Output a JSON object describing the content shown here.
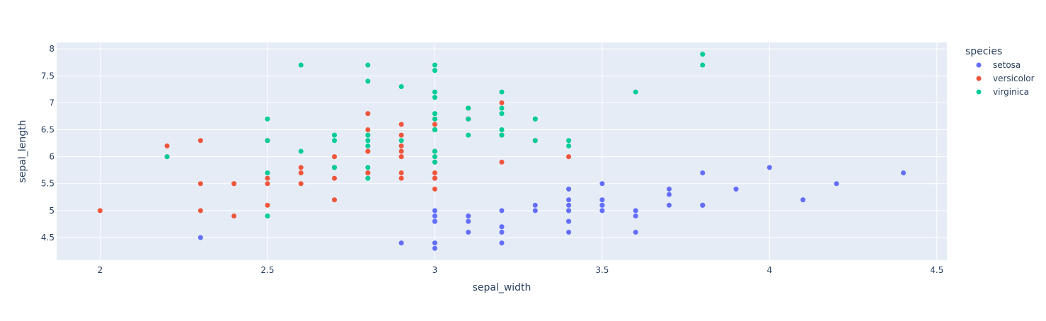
{
  "chart_data": {
    "type": "scatter",
    "title": "",
    "xlabel": "sepal_width",
    "ylabel": "sepal_length",
    "xlim": [
      1.87,
      4.53
    ],
    "ylim": [
      4.08,
      8.12
    ],
    "xticks": [
      2,
      2.5,
      3,
      3.5,
      4,
      4.5
    ],
    "xtick_labels": [
      "2",
      "2.5",
      "3",
      "3.5",
      "4",
      "4.5"
    ],
    "yticks": [
      4.5,
      5,
      5.5,
      6,
      6.5,
      7,
      7.5,
      8
    ],
    "ytick_labels": [
      "4.5",
      "5",
      "5.5",
      "6",
      "6.5",
      "7",
      "7.5",
      "8"
    ],
    "grid": true,
    "legend": {
      "title": "species",
      "placement": "right"
    },
    "colors": {
      "plot_bg": "#E5ECF6",
      "grid": "#ffffff",
      "text": "#2a3f5f"
    },
    "series": [
      {
        "name": "setosa",
        "color": "#636efa",
        "points": [
          [
            3.5,
            5.1
          ],
          [
            3,
            4.9
          ],
          [
            3.2,
            4.7
          ],
          [
            3.1,
            4.6
          ],
          [
            3.6,
            5
          ],
          [
            3.9,
            5.4
          ],
          [
            3.4,
            4.6
          ],
          [
            3.4,
            5
          ],
          [
            2.9,
            4.4
          ],
          [
            3.1,
            4.9
          ],
          [
            3.7,
            5.4
          ],
          [
            3.4,
            4.8
          ],
          [
            3,
            4.8
          ],
          [
            3,
            4.3
          ],
          [
            4,
            5.8
          ],
          [
            4.4,
            5.7
          ],
          [
            3.9,
            5.4
          ],
          [
            3.5,
            5.1
          ],
          [
            3.8,
            5.7
          ],
          [
            3.8,
            5.1
          ],
          [
            3.4,
            5.4
          ],
          [
            3.7,
            5.1
          ],
          [
            3.6,
            4.6
          ],
          [
            3.3,
            5.1
          ],
          [
            3.4,
            4.8
          ],
          [
            3,
            5
          ],
          [
            3.4,
            5
          ],
          [
            3.5,
            5.2
          ],
          [
            3.4,
            5.2
          ],
          [
            3.2,
            4.7
          ],
          [
            3.1,
            4.8
          ],
          [
            3.4,
            5.4
          ],
          [
            4.1,
            5.2
          ],
          [
            4.2,
            5.5
          ],
          [
            3.1,
            4.9
          ],
          [
            3.2,
            5
          ],
          [
            3.5,
            5.5
          ],
          [
            3.6,
            4.9
          ],
          [
            3,
            4.4
          ],
          [
            3.4,
            5.1
          ],
          [
            3.5,
            5
          ],
          [
            2.3,
            4.5
          ],
          [
            3.2,
            4.4
          ],
          [
            3.5,
            5
          ],
          [
            3.8,
            5.1
          ],
          [
            3,
            4.8
          ],
          [
            3.8,
            5.1
          ],
          [
            3.2,
            4.6
          ],
          [
            3.7,
            5.3
          ],
          [
            3.3,
            5
          ]
        ]
      },
      {
        "name": "versicolor",
        "color": "#EF553B",
        "points": [
          [
            3.2,
            7
          ],
          [
            3.2,
            6.4
          ],
          [
            3.1,
            6.9
          ],
          [
            2.3,
            5.5
          ],
          [
            2.8,
            6.5
          ],
          [
            2.8,
            5.7
          ],
          [
            3.3,
            6.3
          ],
          [
            2.4,
            4.9
          ],
          [
            2.9,
            6.6
          ],
          [
            2.7,
            5.2
          ],
          [
            2,
            5
          ],
          [
            3,
            5.9
          ],
          [
            2.2,
            6
          ],
          [
            2.9,
            6.1
          ],
          [
            2.9,
            5.6
          ],
          [
            3.1,
            6.7
          ],
          [
            3,
            5.6
          ],
          [
            2.7,
            5.8
          ],
          [
            2.2,
            6.2
          ],
          [
            2.5,
            5.6
          ],
          [
            3.2,
            5.9
          ],
          [
            2.8,
            6.1
          ],
          [
            2.5,
            6.3
          ],
          [
            2.8,
            6.1
          ],
          [
            2.9,
            6.4
          ],
          [
            3,
            6.6
          ],
          [
            2.8,
            6.8
          ],
          [
            3,
            6.7
          ],
          [
            2.9,
            6
          ],
          [
            2.6,
            5.7
          ],
          [
            2.4,
            5.5
          ],
          [
            2.4,
            5.5
          ],
          [
            2.7,
            5.8
          ],
          [
            2.7,
            6
          ],
          [
            3,
            5.4
          ],
          [
            3.4,
            6
          ],
          [
            3.1,
            6.7
          ],
          [
            2.3,
            6.3
          ],
          [
            3,
            5.6
          ],
          [
            2.5,
            5.5
          ],
          [
            2.6,
            5.5
          ],
          [
            3,
            6.1
          ],
          [
            2.6,
            5.8
          ],
          [
            2.3,
            5
          ],
          [
            2.7,
            5.6
          ],
          [
            3,
            5.7
          ],
          [
            2.9,
            5.7
          ],
          [
            2.9,
            6.2
          ],
          [
            2.5,
            5.1
          ],
          [
            2.8,
            5.7
          ]
        ]
      },
      {
        "name": "virginica",
        "color": "#00cc96",
        "points": [
          [
            3.3,
            6.3
          ],
          [
            2.7,
            5.8
          ],
          [
            3,
            7.1
          ],
          [
            2.9,
            6.3
          ],
          [
            3,
            6.5
          ],
          [
            3,
            7.6
          ],
          [
            2.5,
            4.9
          ],
          [
            2.9,
            7.3
          ],
          [
            2.5,
            6.7
          ],
          [
            3.6,
            7.2
          ],
          [
            3.2,
            6.5
          ],
          [
            2.7,
            6.4
          ],
          [
            3,
            6.8
          ],
          [
            2.5,
            5.7
          ],
          [
            2.8,
            5.8
          ],
          [
            3.2,
            6.4
          ],
          [
            3,
            6.5
          ],
          [
            3.8,
            7.7
          ],
          [
            2.6,
            7.7
          ],
          [
            2.2,
            6
          ],
          [
            3.2,
            6.9
          ],
          [
            2.8,
            5.6
          ],
          [
            2.8,
            7.7
          ],
          [
            2.7,
            6.3
          ],
          [
            3.3,
            6.7
          ],
          [
            3.2,
            7.2
          ],
          [
            2.8,
            6.2
          ],
          [
            3,
            6.1
          ],
          [
            2.8,
            6.4
          ],
          [
            3,
            7.2
          ],
          [
            2.8,
            7.4
          ],
          [
            3.8,
            7.9
          ],
          [
            2.8,
            6.4
          ],
          [
            2.8,
            6.3
          ],
          [
            2.6,
            6.1
          ],
          [
            3,
            7.7
          ],
          [
            3.4,
            6.3
          ],
          [
            3.1,
            6.4
          ],
          [
            3,
            6
          ],
          [
            3.1,
            6.9
          ],
          [
            3.1,
            6.7
          ],
          [
            3.1,
            6.9
          ],
          [
            2.7,
            5.8
          ],
          [
            3.2,
            6.8
          ],
          [
            3.3,
            6.7
          ],
          [
            3,
            6.7
          ],
          [
            2.5,
            6.3
          ],
          [
            3,
            6.5
          ],
          [
            3.4,
            6.2
          ],
          [
            3,
            5.9
          ]
        ]
      }
    ]
  }
}
